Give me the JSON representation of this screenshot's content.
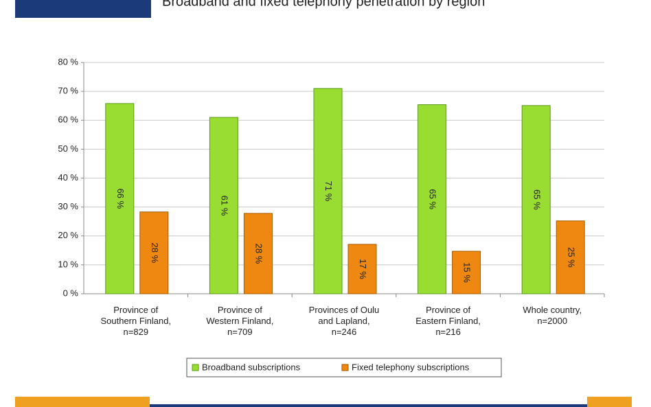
{
  "chart_data": {
    "type": "bar",
    "title": "Broadband and fixed telephony penetration by region",
    "categories": [
      "Province of\nSouthern Finland,\nn=829",
      "Province of\nWestern Finland,\nn=709",
      "Provinces of Oulu\nand Lapland,\nn=246",
      "Province of\nEastern Finland,\nn=216",
      "Whole country,\nn=2000"
    ],
    "series": [
      {
        "name": "Broadband subscriptions",
        "color": "#99dd33",
        "values": [
          65.8,
          61.0,
          71.0,
          65.4,
          65.1
        ],
        "value_labels": [
          "66 %",
          "61 %",
          "71 %",
          "65 %",
          "65 %"
        ]
      },
      {
        "name": "Fixed telephony subscriptions",
        "color": "#ee8811",
        "values": [
          28.3,
          27.8,
          17.1,
          14.7,
          25.2
        ],
        "value_labels": [
          "28 %",
          "28 %",
          "17 %",
          "15 %",
          "25 %"
        ]
      }
    ],
    "ylim": [
      0,
      80
    ],
    "yticks": [
      {
        "value": 0,
        "label": "0 %"
      },
      {
        "value": 10,
        "label": "10 %"
      },
      {
        "value": 20,
        "label": "20 %"
      },
      {
        "value": 30,
        "label": "30 %"
      },
      {
        "value": 40,
        "label": "40 %"
      },
      {
        "value": 50,
        "label": "50 %"
      },
      {
        "value": 60,
        "label": "60 %"
      },
      {
        "value": 70,
        "label": "70 %"
      },
      {
        "value": 80,
        "label": "80 %"
      }
    ],
    "grid": true,
    "legend": "bottom"
  }
}
